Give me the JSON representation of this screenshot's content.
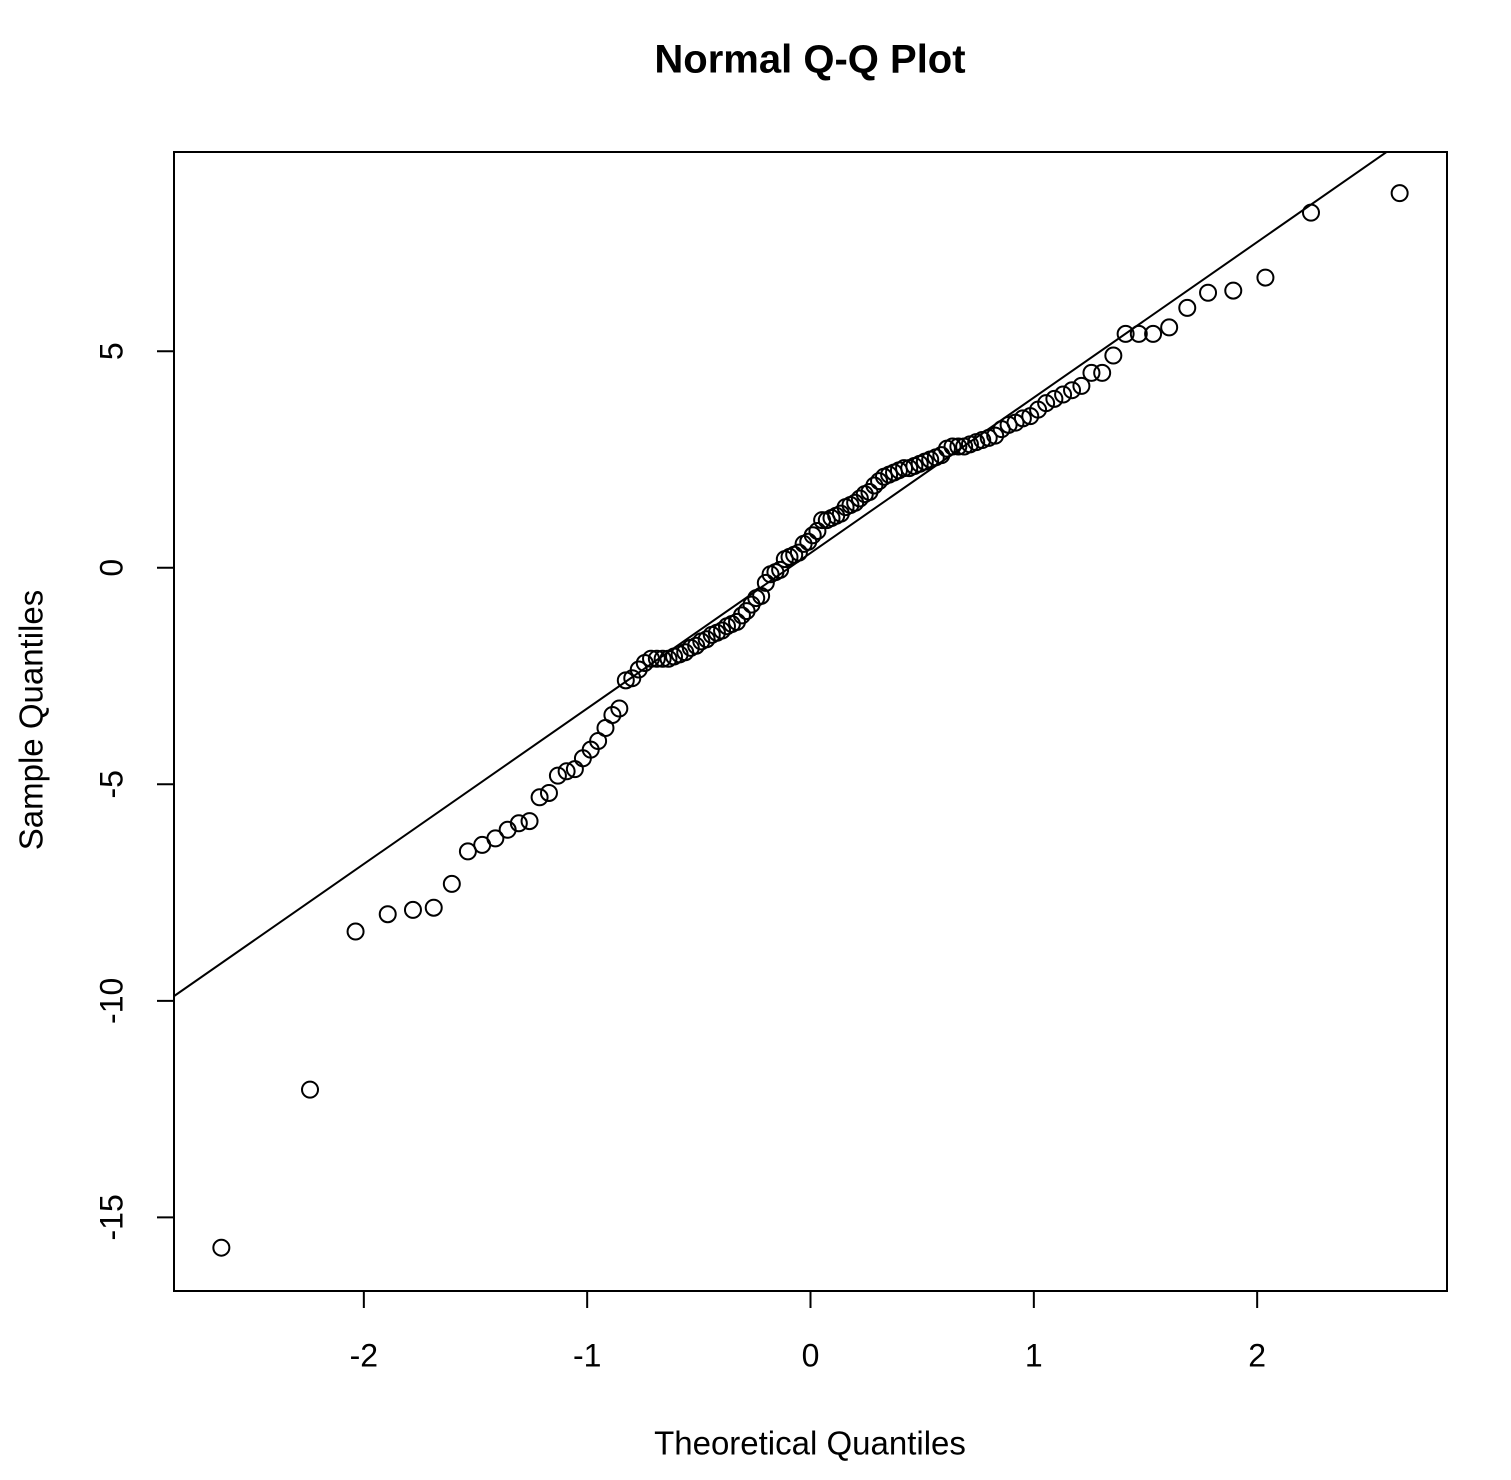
{
  "chart_data": {
    "type": "scatter",
    "title": "Normal Q-Q Plot",
    "x_label": "Theoretical Quantiles",
    "y_label": "Sample Quantiles",
    "xlim": [
      -2.85,
      2.85
    ],
    "ylim": [
      -16.7,
      9.6
    ],
    "xticks": [
      -2,
      -1,
      0,
      1,
      2
    ],
    "yticks": [
      -15,
      -10,
      -5,
      0,
      5
    ],
    "grid": false,
    "color": "#000000",
    "reference_line": {
      "intercept": 0.34,
      "slope": 3.59
    },
    "x": [
      -2.638,
      -2.241,
      -2.037,
      -1.893,
      -1.78,
      -1.687,
      -1.606,
      -1.534,
      -1.47,
      -1.411,
      -1.356,
      -1.306,
      -1.258,
      -1.213,
      -1.171,
      -1.131,
      -1.092,
      -1.055,
      -1.019,
      -0.984,
      -0.951,
      -0.918,
      -0.887,
      -0.856,
      -0.827,
      -0.798,
      -0.769,
      -0.742,
      -0.714,
      -0.688,
      -0.662,
      -0.636,
      -0.611,
      -0.586,
      -0.561,
      -0.536,
      -0.512,
      -0.489,
      -0.465,
      -0.442,
      -0.419,
      -0.396,
      -0.374,
      -0.352,
      -0.329,
      -0.307,
      -0.286,
      -0.264,
      -0.243,
      -0.221,
      -0.2,
      -0.179,
      -0.157,
      -0.136,
      -0.115,
      -0.094,
      -0.073,
      -0.052,
      -0.031,
      -0.01,
      0.01,
      0.031,
      0.052,
      0.073,
      0.094,
      0.115,
      0.136,
      0.157,
      0.179,
      0.2,
      0.221,
      0.243,
      0.264,
      0.286,
      0.307,
      0.329,
      0.352,
      0.374,
      0.396,
      0.419,
      0.442,
      0.465,
      0.489,
      0.512,
      0.536,
      0.561,
      0.586,
      0.611,
      0.636,
      0.662,
      0.688,
      0.714,
      0.742,
      0.769,
      0.798,
      0.827,
      0.856,
      0.887,
      0.918,
      0.951,
      0.984,
      1.019,
      1.055,
      1.092,
      1.131,
      1.171,
      1.213,
      1.258,
      1.306,
      1.356,
      1.411,
      1.47,
      1.534,
      1.606,
      1.687,
      1.78,
      1.893,
      2.037,
      2.241,
      2.638
    ],
    "values": [
      -15.7,
      -12.05,
      -8.4,
      -8.0,
      -7.9,
      -7.85,
      -7.3,
      -6.55,
      -6.4,
      -6.25,
      -6.05,
      -5.9,
      -5.85,
      -5.3,
      -5.2,
      -4.8,
      -4.7,
      -4.65,
      -4.4,
      -4.2,
      -4.0,
      -3.7,
      -3.4,
      -3.25,
      -2.6,
      -2.55,
      -2.35,
      -2.2,
      -2.1,
      -2.1,
      -2.1,
      -2.1,
      -2.05,
      -2.0,
      -1.95,
      -1.85,
      -1.8,
      -1.7,
      -1.65,
      -1.55,
      -1.5,
      -1.45,
      -1.35,
      -1.3,
      -1.25,
      -1.1,
      -1.0,
      -0.85,
      -0.7,
      -0.65,
      -0.35,
      -0.15,
      -0.1,
      -0.05,
      0.2,
      0.25,
      0.3,
      0.35,
      0.55,
      0.6,
      0.75,
      0.85,
      1.1,
      1.1,
      1.15,
      1.2,
      1.25,
      1.4,
      1.45,
      1.5,
      1.6,
      1.7,
      1.75,
      1.9,
      2.0,
      2.1,
      2.15,
      2.2,
      2.25,
      2.3,
      2.3,
      2.35,
      2.4,
      2.45,
      2.5,
      2.55,
      2.6,
      2.75,
      2.8,
      2.8,
      2.8,
      2.85,
      2.9,
      2.95,
      3.0,
      3.05,
      3.2,
      3.3,
      3.35,
      3.45,
      3.5,
      3.65,
      3.8,
      3.9,
      4.0,
      4.1,
      4.2,
      4.5,
      4.5,
      4.9,
      5.4,
      5.4,
      5.4,
      5.55,
      6.0,
      6.35,
      6.4,
      6.7,
      8.2,
      8.65
    ]
  }
}
